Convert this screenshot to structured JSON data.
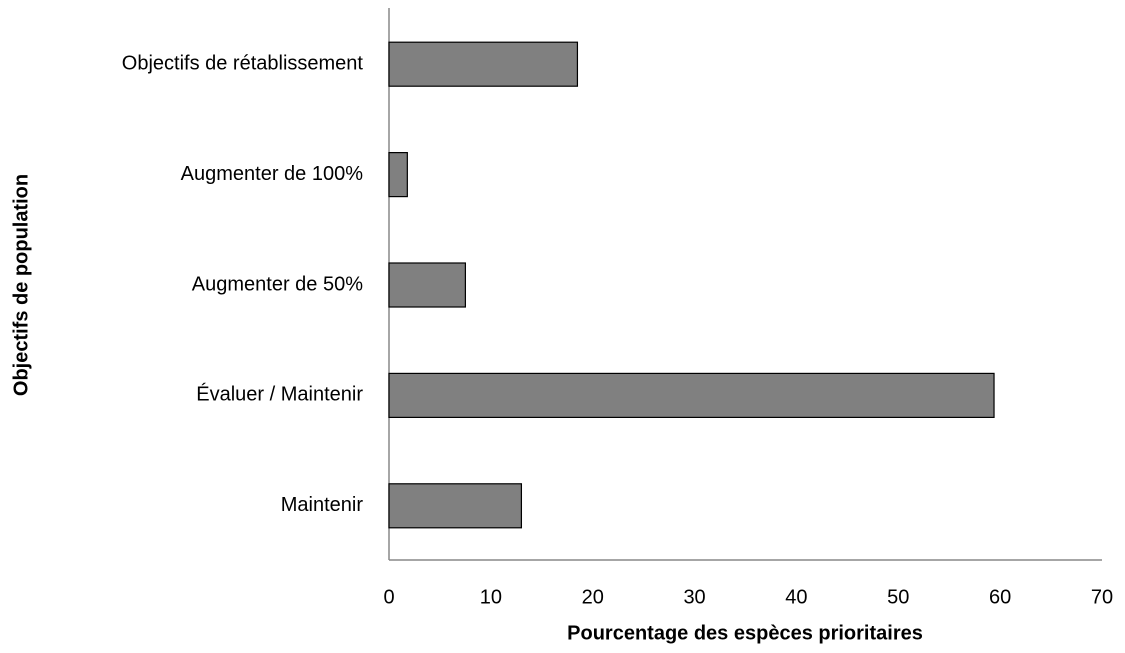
{
  "chart_data": {
    "type": "bar",
    "orientation": "horizontal",
    "xlabel": "Pourcentage des espèces prioritaires",
    "ylabel": "Objectifs de population",
    "categories": [
      "Objectifs de rétablissement",
      "Augmenter de 100%",
      "Augmenter de 50%",
      "Évaluer / Maintenir",
      "Maintenir"
    ],
    "values": [
      18.5,
      1.8,
      7.5,
      59.4,
      13.0
    ],
    "color": "#808080",
    "xlim": [
      0,
      70
    ],
    "xticks": [
      0,
      10,
      20,
      30,
      40,
      50,
      60,
      70
    ],
    "grid": false
  }
}
